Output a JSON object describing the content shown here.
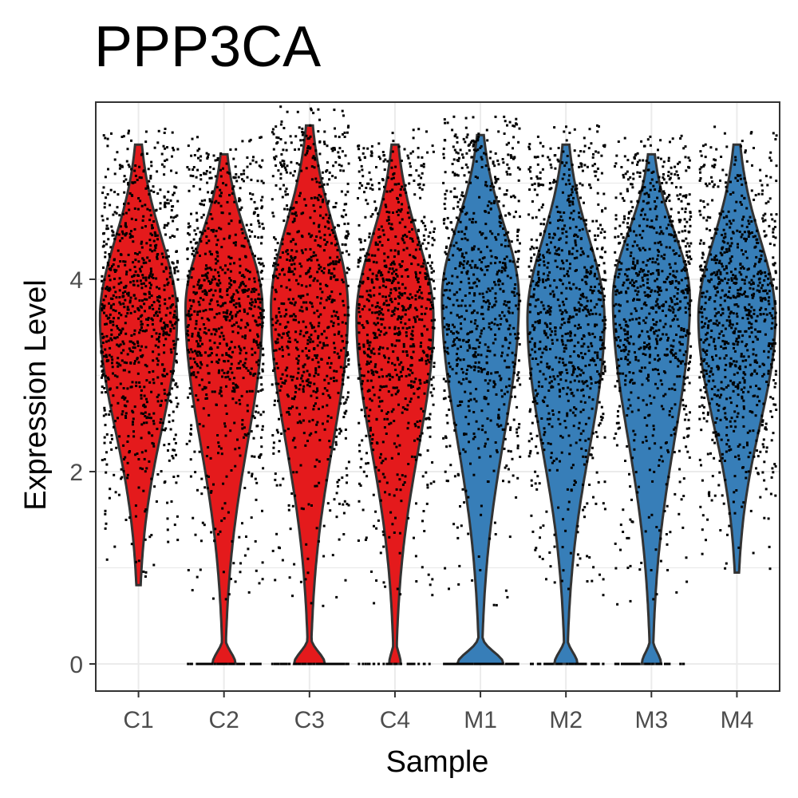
{
  "chart_data": {
    "type": "violin",
    "title": "PPP3CA",
    "xlabel": "Sample",
    "ylabel": "Expression Level",
    "categories": [
      "C1",
      "C2",
      "C3",
      "C4",
      "M1",
      "M2",
      "M3",
      "M4"
    ],
    "y_ticks": [
      0,
      2,
      4
    ],
    "ylim": [
      -0.27,
      5.8
    ],
    "grid": true,
    "legend": "none",
    "colors": {
      "C1": "#e41a1c",
      "C2": "#e41a1c",
      "C3": "#e41a1c",
      "C4": "#e41a1c",
      "M1": "#377eb8",
      "M2": "#377eb8",
      "M3": "#377eb8",
      "M4": "#377eb8"
    },
    "series": [
      {
        "name": "C1",
        "min": 0.82,
        "max": 5.4,
        "median": 3.6,
        "zero_fraction": 0.0
      },
      {
        "name": "C2",
        "min": 0.0,
        "max": 5.3,
        "median": 3.7,
        "zero_fraction": 0.06
      },
      {
        "name": "C3",
        "min": 0.0,
        "max": 5.6,
        "median": 3.7,
        "zero_fraction": 0.08
      },
      {
        "name": "C4",
        "min": 0.0,
        "max": 5.4,
        "median": 3.6,
        "zero_fraction": 0.03
      },
      {
        "name": "M1",
        "min": 0.0,
        "max": 5.5,
        "median": 3.8,
        "zero_fraction": 0.12
      },
      {
        "name": "M2",
        "min": 0.0,
        "max": 5.4,
        "median": 3.6,
        "zero_fraction": 0.06
      },
      {
        "name": "M3",
        "min": 0.0,
        "max": 5.3,
        "median": 3.8,
        "zero_fraction": 0.05
      },
      {
        "name": "M4",
        "min": 0.95,
        "max": 5.4,
        "median": 3.6,
        "zero_fraction": 0.0
      }
    ]
  }
}
